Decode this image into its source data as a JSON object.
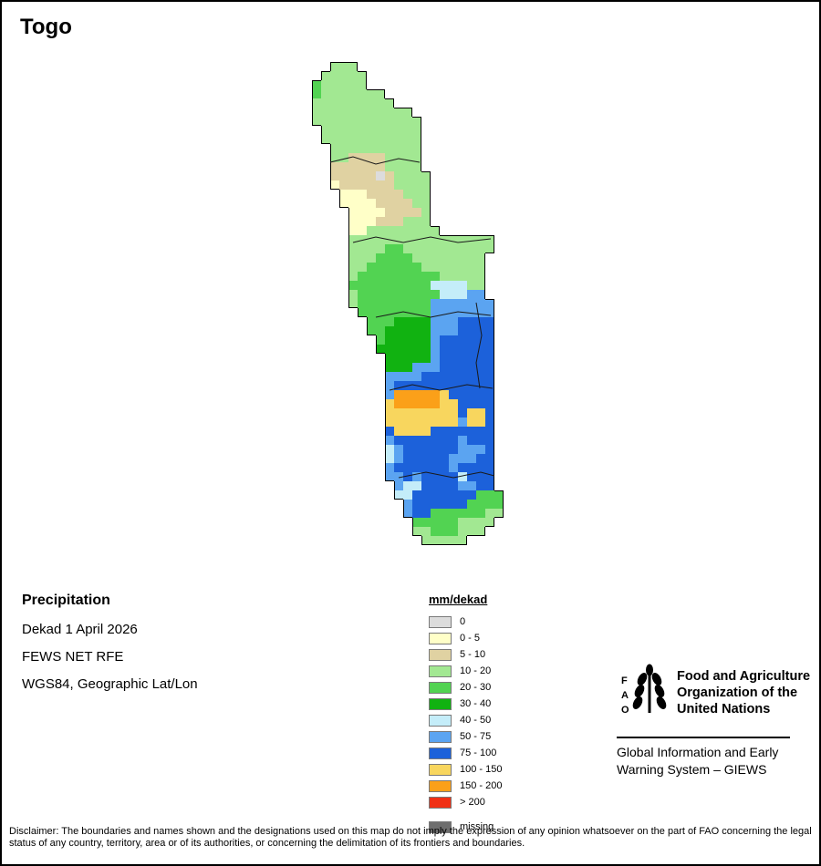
{
  "page": {
    "title": "Togo",
    "background": "#ffffff",
    "border_color": "#000000"
  },
  "info": {
    "heading": "Precipitation",
    "lines": [
      "Dekad 1 April 2026",
      "FEWS NET RFE",
      "WGS84, Geographic Lat/Lon"
    ]
  },
  "legend": {
    "title": "mm/dekad",
    "items": [
      {
        "label": "0",
        "color": "#dcdcdc"
      },
      {
        "label": "0 - 5",
        "color": "#ffffc8"
      },
      {
        "label": "5 - 10",
        "color": "#e0d2a2"
      },
      {
        "label": "10 - 20",
        "color": "#a2e892"
      },
      {
        "label": "20 - 30",
        "color": "#52d352"
      },
      {
        "label": "30 - 40",
        "color": "#11b211"
      },
      {
        "label": "40 - 50",
        "color": "#c4edf9"
      },
      {
        "label": "50 - 75",
        "color": "#5ba4f1"
      },
      {
        "label": "75 - 100",
        "color": "#1c61da"
      },
      {
        "label": "100 - 150",
        "color": "#f8d65e"
      },
      {
        "label": "150 - 200",
        "color": "#fba019"
      },
      {
        "label": "> 200",
        "color": "#f03015"
      }
    ],
    "missing": {
      "label": "missing",
      "color": "#6e6e6e"
    }
  },
  "map": {
    "cell": 10,
    "cols": 22,
    "palette": {
      "0": "#dcdcdc",
      "a": "#ffffc8",
      "b": "#e0d2a2",
      "c": "#a2e892",
      "d": "#52d352",
      "e": "#11b211",
      "f": "#c4edf9",
      "g": "#5ba4f1",
      "h": "#1c61da",
      "i": "#f8d65e",
      "j": "#fba019",
      "k": "#f03015",
      "m": "#6e6e6e"
    },
    "grid": [
      "..ccc",
      ".ccccc",
      "dccccc",
      "dccccccc",
      "ccccccccc",
      "ccccccccccc",
      "cccccccccccc",
      ".ccccccccccc",
      ".ccccccccccc",
      "..cccccccccc",
      "..ccbbbbcccc",
      "..bbbbbbcccc",
      "..bbbbb0bcccc",
      "..abbbbbbcccc",
      "...aaabbbbccc",
      "...aaaabbbbcc",
      "....aaaabbbbc",
      "....aaabbbccc",
      "....aacccccccc",
      "....cccccccccccccccc",
      "....ccccddcccccccccc",
      "....cccddddcccccccc",
      "....ccddddddccccccc",
      "....cdddddddddccccc",
      "....dddddddddffffcc",
      "....cdddddddddfffgg",
      "....cddddddddggggggg",
      ".....ddddddddggggggg",
      "......dddeeeeggghhhh",
      "......ddeeeeeggghhhh",
      ".......deeeeeghhhhhh",
      ".......eeeeeeghhhhhh",
      "........eeeeeghhhhhh",
      "........eeeggghhhhhh",
      "........gggghhhhhhhh",
      "........ghhhhhhhhhhh",
      "........gjjjjjihhhhh",
      "........ijjjjjiihhhh",
      "........iiiiiiiihiih",
      "........iiiiiiiigiih",
      "........hiiiihhhhhhh",
      "........ghhhhhhhghhh",
      "........fghhhhhhgggh",
      "........fghhhhhggghh",
      "........ghhhhhhghhhh",
      "........gghghhhhfhhh",
      ".........gffhhhhgghh",
      ".........ffhhhhhhhddd",
      "..........ghhhhhhdddd",
      "..........ghhddddddcc",
      "...........dddddcccc",
      "...........ccdddccc",
      "............ccccc"
    ],
    "boundaries": [
      "20,110 45,104 70,112 95,106 118,110",
      "45,198 70,192 100,198 130,192 160,198 196,194",
      "70,280 100,274 130,280 160,274 196,278",
      "85,360 110,354 140,360 170,354 198,358",
      "95,456 125,450 155,456 185,450 200,454",
      "180,264 186,300 180,330 184,358"
    ]
  },
  "footer": {
    "logo_letters": [
      "F",
      "A",
      "O"
    ],
    "org": [
      "Food and Agriculture",
      "Organization of the",
      "United Nations"
    ],
    "giews": [
      "Global Information and Early",
      "Warning System – GIEWS"
    ]
  },
  "disclaimer": "Disclaimer: The boundaries and names shown and the designations used on this map do not imply the expression of any opinion whatsoever on the part of FAO concerning the legal status of any country, territory, area or of its authorities, or concerning the delimitation of its frontiers and boundaries."
}
